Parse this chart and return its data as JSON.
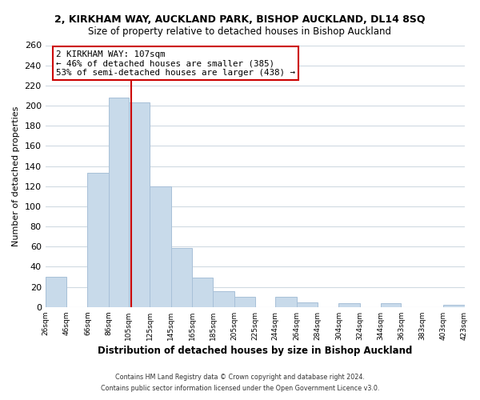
{
  "title": "2, KIRKHAM WAY, AUCKLAND PARK, BISHOP AUCKLAND, DL14 8SQ",
  "subtitle": "Size of property relative to detached houses in Bishop Auckland",
  "xlabel": "Distribution of detached houses by size in Bishop Auckland",
  "ylabel": "Number of detached properties",
  "bar_color": "#c8daea",
  "bar_edge_color": "#a8c0d8",
  "vline_x": 107,
  "vline_color": "#cc0000",
  "annotation_line1": "2 KIRKHAM WAY: 107sqm",
  "annotation_line2": "← 46% of detached houses are smaller (385)",
  "annotation_line3": "53% of semi-detached houses are larger (438) →",
  "bins_left": [
    26,
    46,
    66,
    86,
    105,
    125,
    145,
    165,
    185,
    205,
    225,
    244,
    264,
    284,
    304,
    324,
    344,
    363,
    383,
    403
  ],
  "bins_right": [
    46,
    66,
    86,
    105,
    125,
    145,
    165,
    185,
    205,
    225,
    244,
    264,
    284,
    304,
    324,
    344,
    363,
    383,
    403,
    423
  ],
  "counts": [
    30,
    0,
    133,
    208,
    203,
    120,
    59,
    29,
    16,
    10,
    0,
    10,
    5,
    0,
    4,
    0,
    4,
    0,
    0,
    2
  ],
  "xlim_left": 26,
  "xlim_right": 423,
  "ylim_top": 260,
  "yticks": [
    0,
    20,
    40,
    60,
    80,
    100,
    120,
    140,
    160,
    180,
    200,
    220,
    240,
    260
  ],
  "xtick_labels": [
    "26sqm",
    "46sqm",
    "66sqm",
    "86sqm",
    "105sqm",
    "125sqm",
    "145sqm",
    "165sqm",
    "185sqm",
    "205sqm",
    "225sqm",
    "244sqm",
    "264sqm",
    "284sqm",
    "304sqm",
    "324sqm",
    "344sqm",
    "363sqm",
    "383sqm",
    "403sqm",
    "423sqm"
  ],
  "xtick_positions": [
    26,
    46,
    66,
    86,
    105,
    125,
    145,
    165,
    185,
    205,
    225,
    244,
    264,
    284,
    304,
    324,
    344,
    363,
    383,
    403,
    423
  ],
  "footer_line1": "Contains HM Land Registry data © Crown copyright and database right 2024.",
  "footer_line2": "Contains public sector information licensed under the Open Government Licence v3.0.",
  "background_color": "#ffffff",
  "grid_color": "#d0dae2",
  "title_fontsize": 9,
  "subtitle_fontsize": 8.5
}
